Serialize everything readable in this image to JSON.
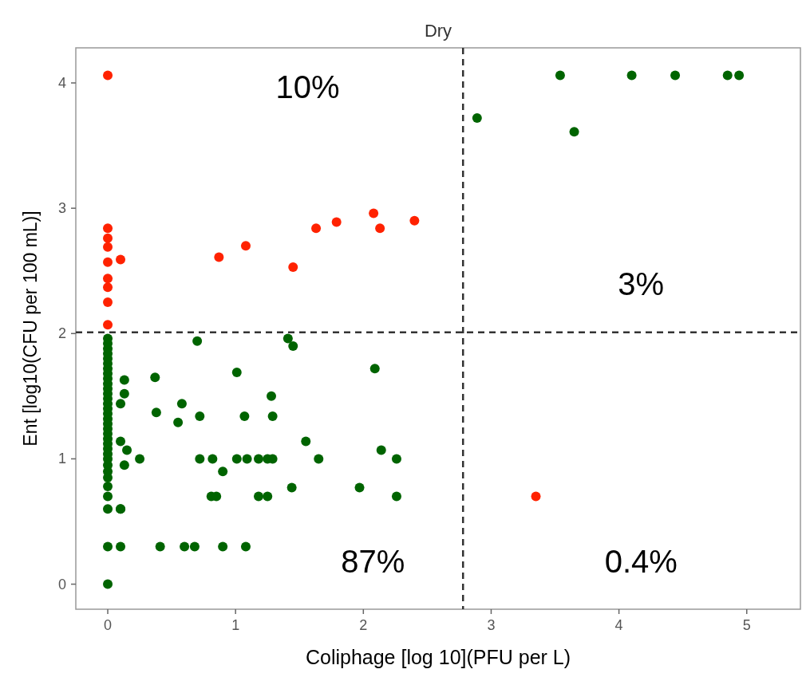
{
  "chart_data": {
    "type": "scatter",
    "title": "Dry",
    "xlabel": "Coliphage [log 10](PFU per L)",
    "ylabel": "Ent [log10(CFU per 100 mL)]",
    "xlim": [
      -0.25,
      5.42
    ],
    "ylim": [
      -0.2,
      4.28
    ],
    "xticks": [
      0,
      1,
      2,
      3,
      4,
      5
    ],
    "yticks": [
      0,
      1,
      2,
      3,
      4
    ],
    "grid": false,
    "marker": "circle",
    "ref_lines": [
      {
        "axis": "x",
        "value": 2.78,
        "label": null,
        "line_style": "dashed",
        "color": "#333333"
      },
      {
        "axis": "y",
        "value": 2.01,
        "label": null,
        "line_style": "dashed",
        "color": "#333333"
      }
    ],
    "annotations": [
      "10%",
      "3%",
      "87%",
      "0.4%"
    ],
    "series": [
      {
        "color": "#ff2200",
        "x": [
          0,
          0,
          0,
          0,
          0,
          0,
          0,
          0,
          0,
          0.1,
          0.87,
          1.08,
          1.45,
          1.63,
          1.79,
          2.08,
          2.13,
          2.4,
          3.35
        ],
        "values": [
          4.06,
          2.84,
          2.76,
          2.69,
          2.57,
          2.44,
          2.37,
          2.25,
          2.07,
          2.59,
          2.61,
          2.7,
          2.53,
          2.84,
          2.89,
          2.96,
          2.84,
          2.9,
          0.7
        ]
      },
      {
        "color": "#006400",
        "x": [
          0,
          0,
          0,
          0,
          0,
          0,
          0,
          0,
          0,
          0,
          0,
          0,
          0,
          0,
          0,
          0,
          0,
          0,
          0,
          0,
          0,
          0,
          0,
          0,
          0,
          0,
          0,
          0,
          0,
          0,
          0,
          0,
          0,
          0.1,
          0.1,
          0.13,
          0.13,
          0.1,
          0.1,
          0.15,
          0.13,
          0.25,
          0.1,
          0.37,
          0.38,
          0.58,
          0.55,
          0.7,
          0.72,
          0.72,
          0.82,
          0.9,
          0.81,
          0.85,
          0.41,
          0.6,
          0.68,
          0.9,
          1.08,
          1.01,
          1.07,
          1.01,
          1.09,
          1.18,
          1.25,
          1.29,
          1.18,
          1.25,
          1.28,
          1.29,
          1.41,
          1.45,
          1.55,
          1.65,
          1.44,
          1.97,
          2.09,
          2.14,
          2.26,
          2.26,
          2.89,
          3.54,
          3.65,
          4.1,
          4.44,
          4.85,
          4.94
        ],
        "values": [
          0,
          0.3,
          0.6,
          0.7,
          0.78,
          0.85,
          0.9,
          0.95,
          1,
          1.04,
          1.08,
          1.12,
          1.16,
          1.2,
          1.24,
          1.28,
          1.32,
          1.36,
          1.4,
          1.44,
          1.48,
          1.52,
          1.56,
          1.6,
          1.64,
          1.68,
          1.72,
          1.76,
          1.8,
          1.84,
          1.88,
          1.92,
          1.96,
          0.6,
          0.6,
          1.63,
          1.52,
          1.44,
          1.14,
          1.07,
          0.95,
          1,
          0.3,
          1.65,
          1.37,
          1.44,
          1.29,
          1.94,
          1.34,
          1,
          1,
          0.9,
          0.7,
          0.7,
          0.3,
          0.3,
          0.3,
          0.3,
          0.3,
          1.69,
          1.34,
          1,
          1,
          1,
          1,
          1,
          0.7,
          0.7,
          1.5,
          1.34,
          1.96,
          1.9,
          1.14,
          1,
          0.77,
          0.77,
          1.72,
          1.07,
          1,
          0.7,
          3.72,
          4.06,
          3.61,
          4.06,
          4.06,
          4.06,
          4.06
        ]
      }
    ]
  }
}
